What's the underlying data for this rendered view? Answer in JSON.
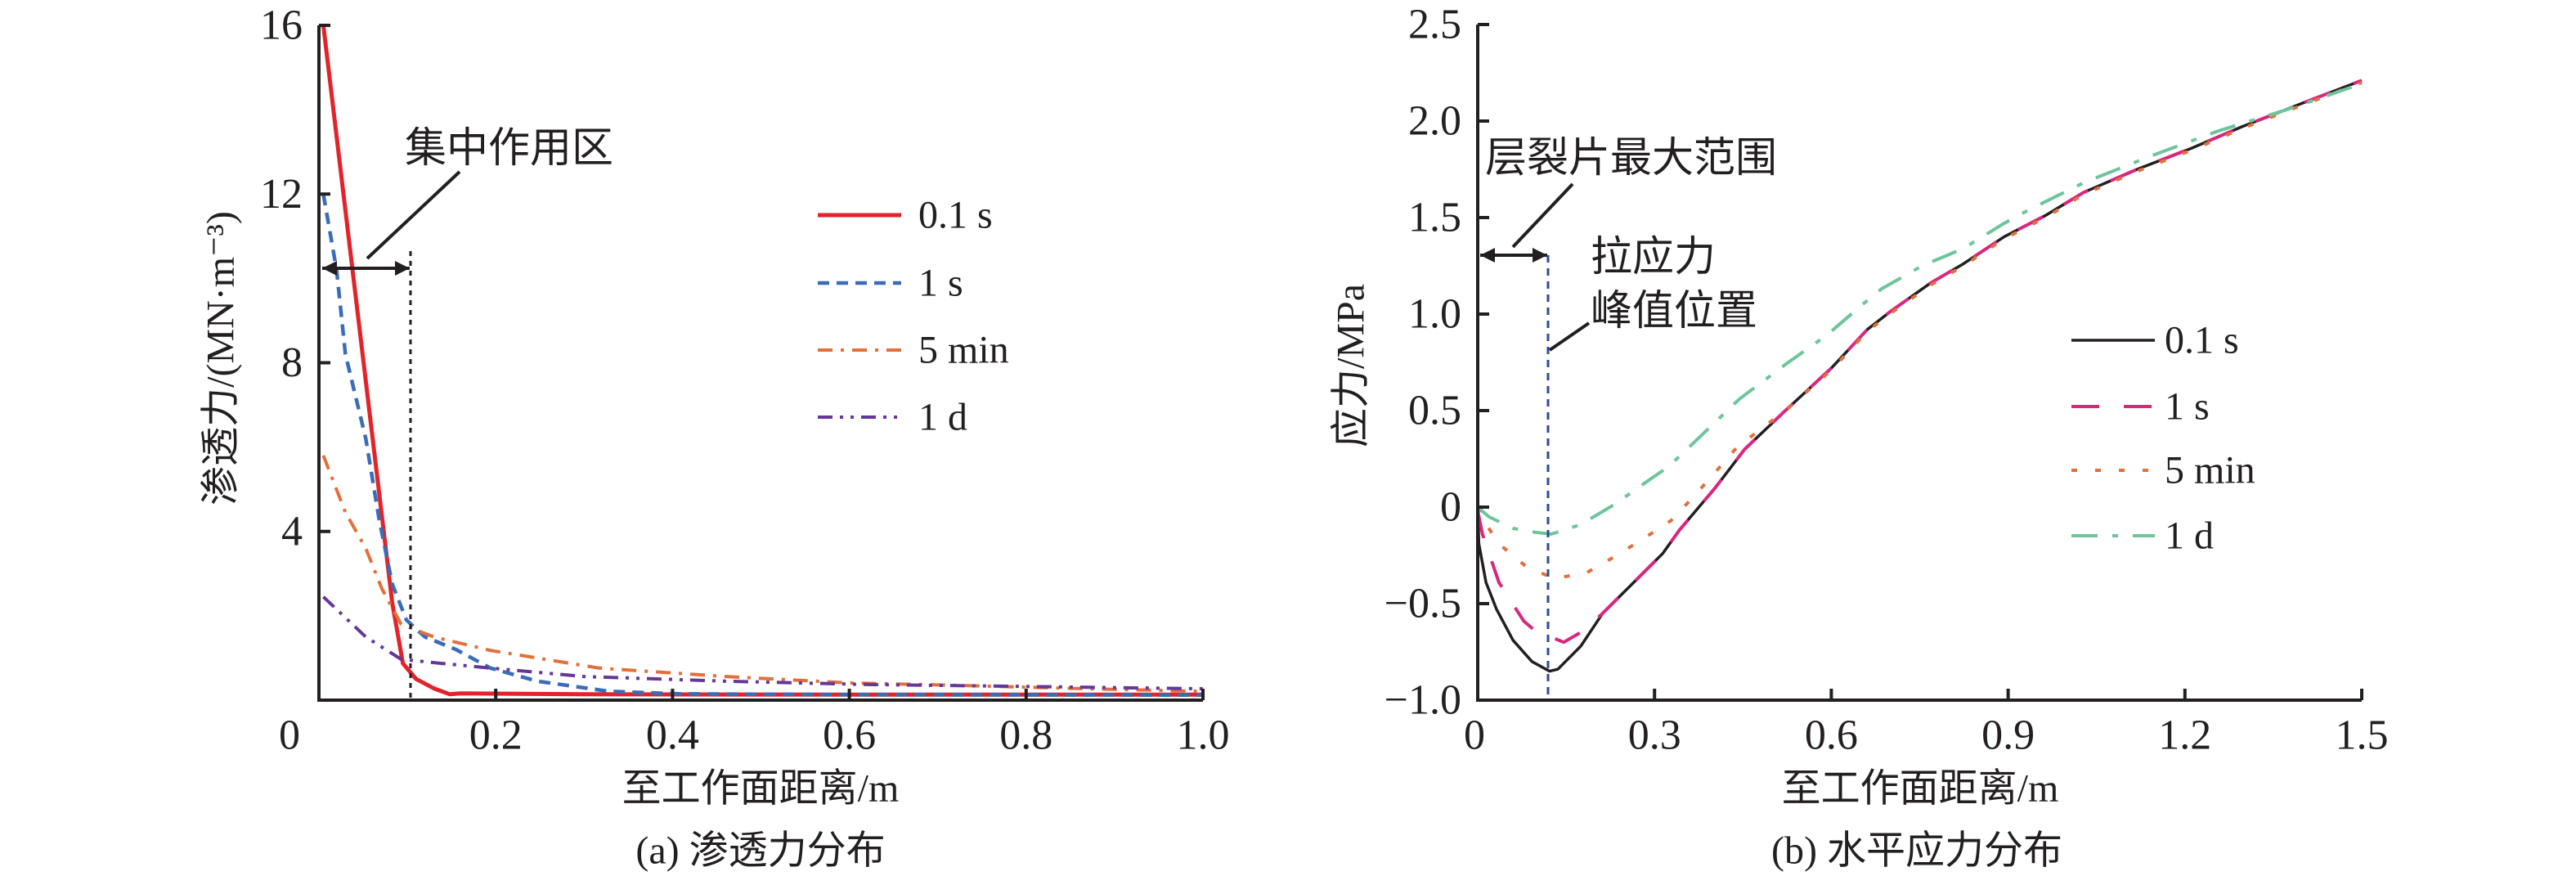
{
  "chart_data": [
    {
      "id": "a",
      "type": "line",
      "caption": "(a) 渗透力分布",
      "xlabel": "至工作面距离/m",
      "ylabel": "渗透力/(MN·m⁻³)",
      "xlim": [
        0,
        1.0
      ],
      "ylim": [
        0,
        16
      ],
      "grid": false,
      "legend_position": "upper-right",
      "xticks": [
        {
          "value": 0,
          "label": "0"
        },
        {
          "value": 0.2,
          "label": "0.2"
        },
        {
          "value": 0.4,
          "label": "0.4"
        },
        {
          "value": 0.6,
          "label": "0.6"
        },
        {
          "value": 0.8,
          "label": "0.8"
        },
        {
          "value": 1.0,
          "label": "1.0"
        }
      ],
      "yticks": [
        {
          "value": 4,
          "label": "4"
        },
        {
          "value": 8,
          "label": "8"
        },
        {
          "value": 12,
          "label": "12"
        },
        {
          "value": 16,
          "label": "16"
        }
      ],
      "series": [
        {
          "name": "0.1 s",
          "color": "#e3222a",
          "style": "solid",
          "points": [
            [
              0.005,
              16.0
            ],
            [
              0.083,
              2.3
            ],
            [
              0.095,
              0.87
            ],
            [
              0.11,
              0.5
            ],
            [
              0.13,
              0.28
            ],
            [
              0.148,
              0.14
            ],
            [
              0.16,
              0.16
            ],
            [
              0.3,
              0.14
            ],
            [
              0.6,
              0.13
            ],
            [
              1.0,
              0.13
            ]
          ]
        },
        {
          "name": "1 s",
          "color": "#3a6cb8",
          "style": "dashed",
          "points": [
            [
              0.005,
              12.0
            ],
            [
              0.02,
              10.2
            ],
            [
              0.03,
              8.2
            ],
            [
              0.053,
              6.2
            ],
            [
              0.068,
              4.3
            ],
            [
              0.083,
              2.75
            ],
            [
              0.099,
              1.9
            ],
            [
              0.12,
              1.5
            ],
            [
              0.155,
              1.2
            ],
            [
              0.194,
              0.76
            ],
            [
              0.247,
              0.45
            ],
            [
              0.328,
              0.21
            ],
            [
              0.407,
              0.15
            ],
            [
              0.6,
              0.13
            ],
            [
              1.0,
              0.12
            ]
          ]
        },
        {
          "name": "5 min",
          "color": "#e36f3b",
          "style": "dash-dot",
          "points": [
            [
              0.005,
              5.8
            ],
            [
              0.03,
              4.45
            ],
            [
              0.053,
              3.6
            ],
            [
              0.071,
              2.65
            ],
            [
              0.093,
              1.8
            ],
            [
              0.13,
              1.5
            ],
            [
              0.194,
              1.18
            ],
            [
              0.317,
              0.76
            ],
            [
              0.46,
              0.56
            ],
            [
              0.6,
              0.41
            ],
            [
              0.726,
              0.35
            ],
            [
              0.85,
              0.28
            ],
            [
              1.0,
              0.21
            ]
          ]
        },
        {
          "name": "1 d",
          "color": "#65379a",
          "style": "dash-dot-dot",
          "points": [
            [
              0.005,
              2.45
            ],
            [
              0.053,
              1.5
            ],
            [
              0.093,
              0.97
            ],
            [
              0.139,
              0.87
            ],
            [
              0.194,
              0.76
            ],
            [
              0.3,
              0.56
            ],
            [
              0.46,
              0.45
            ],
            [
              0.62,
              0.37
            ],
            [
              0.78,
              0.33
            ],
            [
              1.0,
              0.27
            ]
          ]
        }
      ],
      "annotations": [
        {
          "text": "集中作用区",
          "kind": "range-arrow",
          "x_range": [
            0,
            0.1
          ]
        }
      ]
    },
    {
      "id": "b",
      "type": "line",
      "caption": "(b) 水平应力分布",
      "xlabel": "至工作面距离/m",
      "ylabel": "应力/MPa",
      "xlim": [
        0,
        1.5
      ],
      "ylim": [
        -1.0,
        2.5
      ],
      "grid": false,
      "legend_position": "right",
      "xticks": [
        {
          "value": 0,
          "label": "0"
        },
        {
          "value": 0.3,
          "label": "0.3"
        },
        {
          "value": 0.6,
          "label": "0.6"
        },
        {
          "value": 0.9,
          "label": "0.9"
        },
        {
          "value": 1.2,
          "label": "1.2"
        },
        {
          "value": 1.5,
          "label": "1.5"
        }
      ],
      "yticks": [
        {
          "value": -1.0,
          "label": "−1.0"
        },
        {
          "value": -0.5,
          "label": "−0.5"
        },
        {
          "value": 0,
          "label": "0"
        },
        {
          "value": 0.5,
          "label": "0.5"
        },
        {
          "value": 1.0,
          "label": "1.0"
        },
        {
          "value": 1.5,
          "label": "1.5"
        },
        {
          "value": 2.0,
          "label": "2.0"
        },
        {
          "value": 2.5,
          "label": "2.5"
        }
      ],
      "series": [
        {
          "name": "0.1 s",
          "color": "#231f20",
          "style": "solid",
          "points": [
            [
              0,
              0
            ],
            [
              0.002,
              -0.19
            ],
            [
              0.014,
              -0.39
            ],
            [
              0.032,
              -0.53
            ],
            [
              0.06,
              -0.69
            ],
            [
              0.092,
              -0.8
            ],
            [
              0.122,
              -0.85
            ],
            [
              0.136,
              -0.84
            ],
            [
              0.175,
              -0.72
            ],
            [
              0.212,
              -0.55
            ],
            [
              0.268,
              -0.38
            ],
            [
              0.314,
              -0.24
            ],
            [
              0.342,
              -0.12
            ],
            [
              0.403,
              0.1
            ],
            [
              0.453,
              0.3
            ],
            [
              0.522,
              0.5
            ],
            [
              0.6,
              0.72
            ],
            [
              0.661,
              0.92
            ],
            [
              0.699,
              1.01
            ],
            [
              0.768,
              1.16
            ],
            [
              0.824,
              1.26
            ],
            [
              0.893,
              1.4
            ],
            [
              0.963,
              1.51
            ],
            [
              1.028,
              1.63
            ],
            [
              1.119,
              1.75
            ],
            [
              1.212,
              1.86
            ],
            [
              1.296,
              1.97
            ],
            [
              1.397,
              2.09
            ],
            [
              1.5,
              2.21
            ]
          ]
        },
        {
          "name": "1 s",
          "color": "#d7277e",
          "style": "long-dash",
          "points": [
            [
              0,
              -0.02
            ],
            [
              0.008,
              -0.14
            ],
            [
              0.036,
              -0.39
            ],
            [
              0.078,
              -0.59
            ],
            [
              0.097,
              -0.64
            ],
            [
              0.146,
              -0.7
            ],
            [
              0.18,
              -0.64
            ],
            [
              0.212,
              -0.55
            ],
            [
              0.268,
              -0.38
            ],
            [
              0.314,
              -0.24
            ],
            [
              0.342,
              -0.12
            ],
            [
              0.403,
              0.1
            ],
            [
              0.453,
              0.3
            ],
            [
              0.522,
              0.5
            ],
            [
              0.6,
              0.72
            ],
            [
              0.661,
              0.92
            ],
            [
              0.699,
              1.01
            ],
            [
              0.768,
              1.16
            ],
            [
              0.824,
              1.26
            ],
            [
              0.893,
              1.4
            ],
            [
              0.963,
              1.51
            ],
            [
              1.028,
              1.63
            ],
            [
              1.119,
              1.75
            ],
            [
              1.212,
              1.86
            ],
            [
              1.296,
              1.97
            ],
            [
              1.397,
              2.09
            ],
            [
              1.5,
              2.21
            ]
          ]
        },
        {
          "name": "5 min",
          "color": "#e36f3b",
          "style": "dotted",
          "points": [
            [
              0,
              0
            ],
            [
              0.008,
              -0.06
            ],
            [
              0.036,
              -0.19
            ],
            [
              0.083,
              -0.31
            ],
            [
              0.13,
              -0.37
            ],
            [
              0.185,
              -0.34
            ],
            [
              0.23,
              -0.26
            ],
            [
              0.278,
              -0.17
            ],
            [
              0.328,
              -0.07
            ],
            [
              0.365,
              0.05
            ],
            [
              0.4,
              0.17
            ],
            [
              0.44,
              0.31
            ],
            [
              0.522,
              0.5
            ],
            [
              0.6,
              0.71
            ],
            [
              0.661,
              0.91
            ],
            [
              0.699,
              1.0
            ],
            [
              0.768,
              1.15
            ],
            [
              0.824,
              1.25
            ],
            [
              0.893,
              1.39
            ],
            [
              0.963,
              1.5
            ],
            [
              1.028,
              1.62
            ],
            [
              1.119,
              1.74
            ],
            [
              1.212,
              1.85
            ],
            [
              1.296,
              1.96
            ],
            [
              1.397,
              2.08
            ],
            [
              1.5,
              2.2
            ]
          ]
        },
        {
          "name": "1 d",
          "color": "#6ec59b",
          "style": "long-dash-dot",
          "points": [
            [
              0,
              0
            ],
            [
              0.019,
              -0.05
            ],
            [
              0.06,
              -0.11
            ],
            [
              0.097,
              -0.13
            ],
            [
              0.125,
              -0.14
            ],
            [
              0.175,
              -0.09
            ],
            [
              0.23,
              0.01
            ],
            [
              0.286,
              0.13
            ],
            [
              0.324,
              0.21
            ],
            [
              0.379,
              0.37
            ],
            [
              0.444,
              0.56
            ],
            [
              0.527,
              0.75
            ],
            [
              0.592,
              0.89
            ],
            [
              0.653,
              1.05
            ],
            [
              0.685,
              1.13
            ],
            [
              0.754,
              1.25
            ],
            [
              0.824,
              1.34
            ],
            [
              0.893,
              1.47
            ],
            [
              0.935,
              1.54
            ],
            [
              1.028,
              1.68
            ],
            [
              1.143,
              1.82
            ],
            [
              1.258,
              1.95
            ],
            [
              1.374,
              2.06
            ],
            [
              1.496,
              2.19
            ]
          ]
        }
      ],
      "annotations": [
        {
          "text": "层裂片最大范围",
          "kind": "range-arrow",
          "x_range": [
            0,
            0.12
          ]
        },
        {
          "text_lines": [
            "拉应力",
            "峰值位置"
          ],
          "kind": "vertical-marker",
          "x": 0.12,
          "color": "#2c4b9a"
        }
      ]
    }
  ]
}
